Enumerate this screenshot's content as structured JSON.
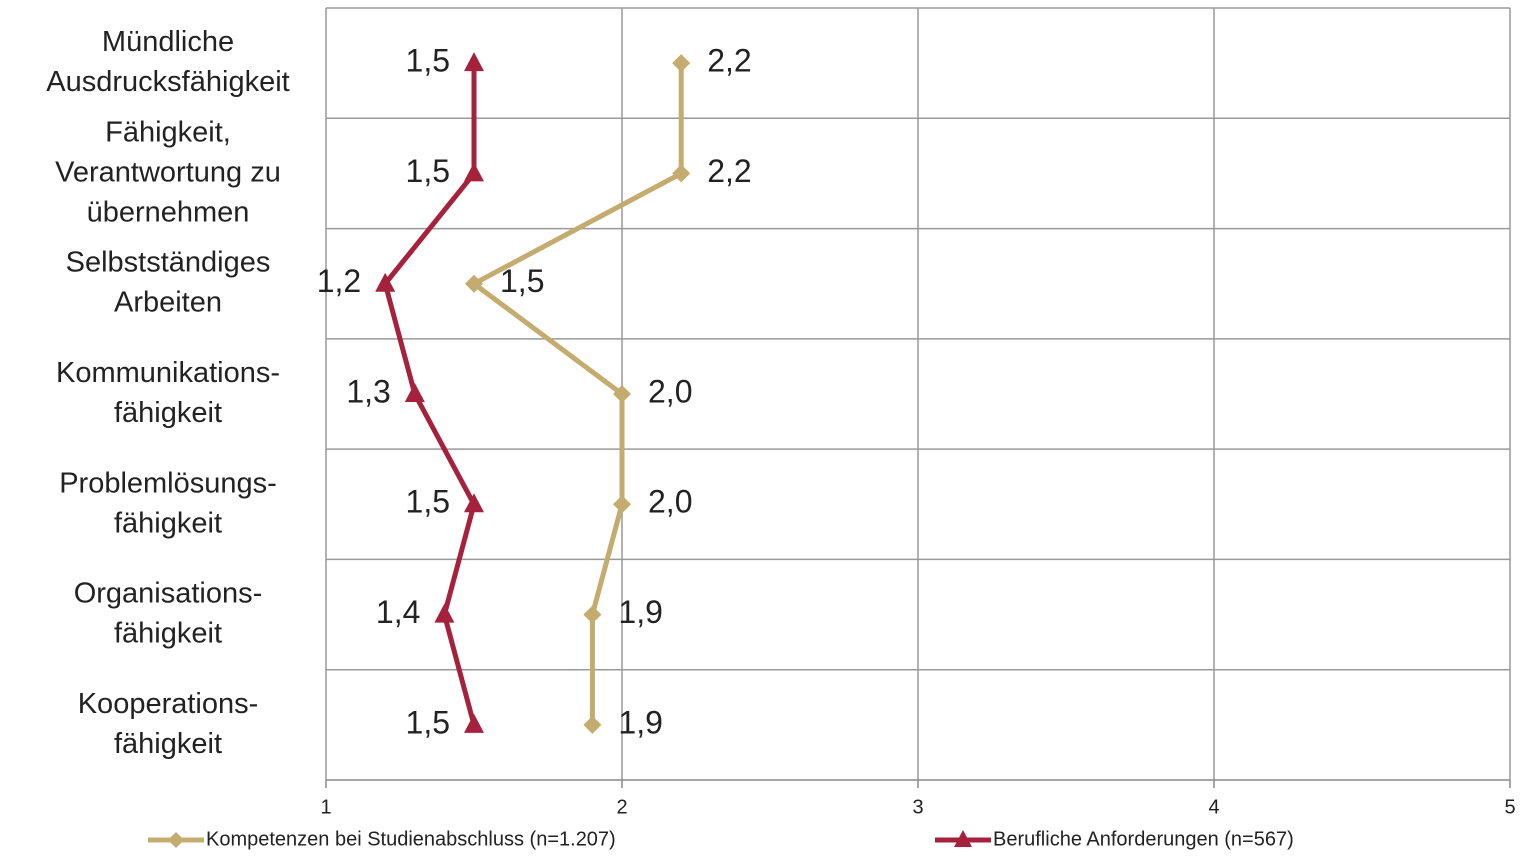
{
  "chart_data": {
    "type": "line",
    "orientation": "horizontal",
    "categories": [
      "Mündliche\nAusdrucksfähigkeit",
      "Fähigkeit,\nVerantwortung zu\nübernehmen",
      "Selbstständiges\nArbeiten",
      "Kommunikations-\nfähigkeit",
      "Problemlösungs-\nfähigkeit",
      "Organisations-\nfähigkeit",
      "Kooperations-\nfähigkeit"
    ],
    "series": [
      {
        "name": "Kompetenzen bei Studienabschluss (n=1.207)",
        "color": "#c4ab6e",
        "marker": "diamond",
        "values": [
          2.2,
          2.2,
          1.5,
          2.0,
          2.0,
          1.9,
          1.9
        ],
        "value_labels": [
          "2,2",
          "2,2",
          "1,5",
          "2,0",
          "2,0",
          "1,9",
          "1,9"
        ]
      },
      {
        "name": "Berufliche Anforderungen (n=567)",
        "color": "#a6213c",
        "marker": "triangle",
        "values": [
          1.5,
          1.5,
          1.2,
          1.3,
          1.5,
          1.4,
          1.5
        ],
        "value_labels": [
          "1,5",
          "1,5",
          "1,2",
          "1,3",
          "1,5",
          "1,4",
          "1,5"
        ]
      }
    ],
    "xlim": [
      1,
      5
    ],
    "xticks": [
      1,
      2,
      3,
      4,
      5
    ],
    "grid": true,
    "legend": "bottom"
  }
}
